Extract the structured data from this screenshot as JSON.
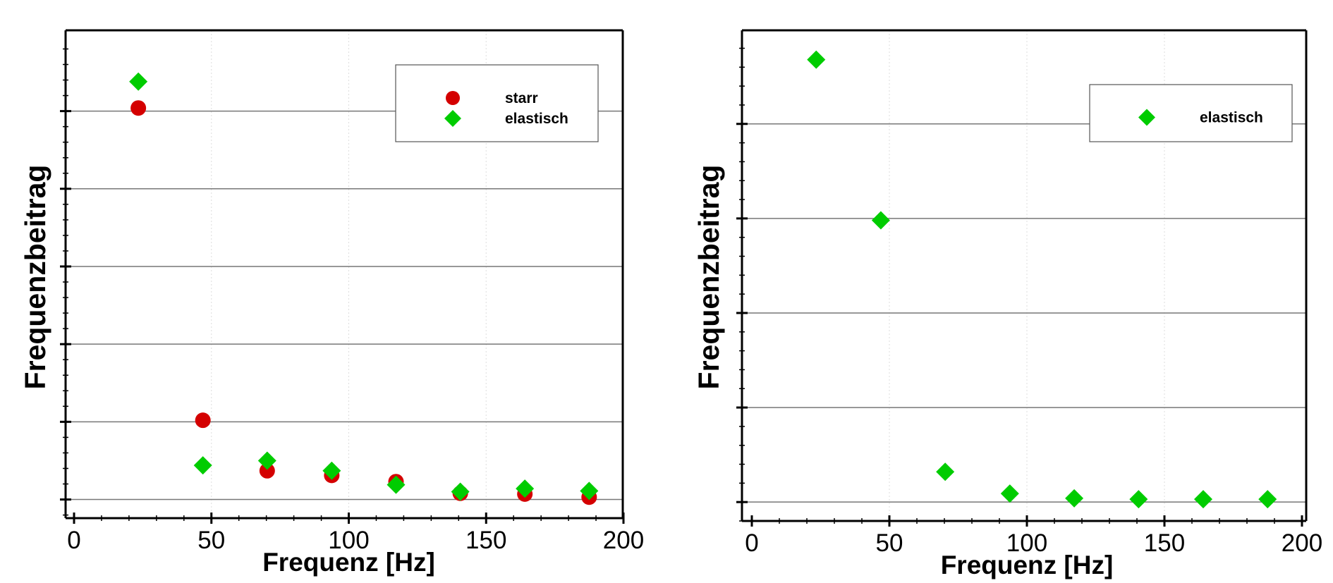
{
  "chart_data": [
    {
      "type": "scatter",
      "title": "",
      "xlabel": "Frequenz [Hz]",
      "ylabel": "Frequenzbeitrag",
      "xlim": [
        0,
        200
      ],
      "ylim": [
        -0.24,
        6.04
      ],
      "xticks": [
        "0",
        "50",
        "100",
        "150",
        "200"
      ],
      "ygrid": [
        0,
        1,
        2,
        3,
        4,
        5
      ],
      "legend_position": "top-right",
      "series": [
        {
          "name": "starr",
          "marker": "circle",
          "color": "#d40000",
          "x": [
            23.4,
            46.9,
            70.3,
            93.8,
            117.2,
            140.6,
            164.1,
            187.5
          ],
          "y": [
            5.04,
            1.02,
            0.37,
            0.31,
            0.23,
            0.08,
            0.07,
            0.03
          ]
        },
        {
          "name": "elastisch",
          "marker": "diamond",
          "color": "#00cc00",
          "x": [
            23.4,
            46.9,
            70.3,
            93.8,
            117.2,
            140.6,
            164.1,
            187.5
          ],
          "y": [
            5.38,
            0.44,
            0.5,
            0.37,
            0.19,
            0.1,
            0.14,
            0.11
          ]
        }
      ]
    },
    {
      "type": "scatter",
      "title": "",
      "xlabel": "Frequenz [Hz]",
      "ylabel": "Frequenzbeitrag",
      "xlim": [
        0,
        200
      ],
      "ylim": [
        -0.2,
        4.99
      ],
      "xticks": [
        "0",
        "50",
        "100",
        "150",
        "200"
      ],
      "ygrid": [
        0,
        1,
        2,
        3,
        4
      ],
      "legend_position": "top-right",
      "series": [
        {
          "name": "elastisch",
          "marker": "diamond",
          "color": "#00cc00",
          "x": [
            23.4,
            46.9,
            70.3,
            93.8,
            117.2,
            140.6,
            164.1,
            187.5
          ],
          "y": [
            4.68,
            2.98,
            0.32,
            0.09,
            0.04,
            0.03,
            0.03,
            0.03
          ]
        }
      ]
    }
  ]
}
